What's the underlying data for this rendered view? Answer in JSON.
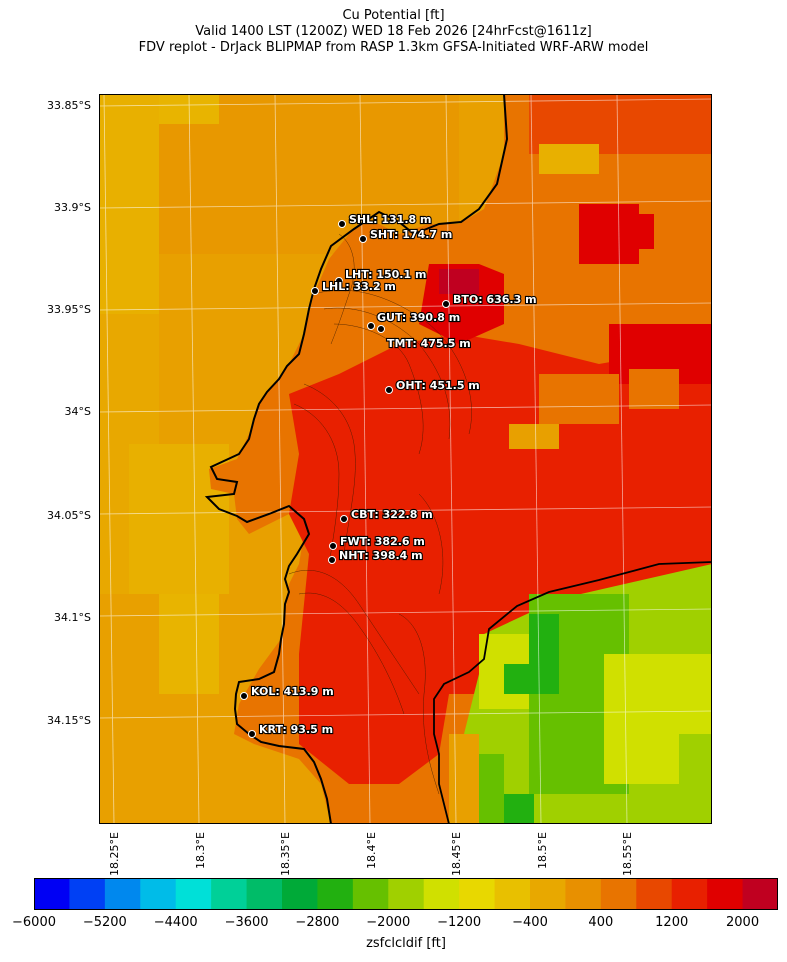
{
  "title": {
    "line1": "Cu Potential [ft]",
    "line2": "Valid 1400 LST (1200Z) WED 18 Feb 2026 [24hrFcst@1611z]",
    "line3": "FDV replot - DrJack BLIPMAP from RASP 1.3km GFSA-Initiated WRF-ARW model"
  },
  "y_ticks": [
    "33.85°S",
    "33.9°S",
    "33.95°S",
    "34°S",
    "34.05°S",
    "34.1°S",
    "34.15°S"
  ],
  "x_ticks": [
    "18.25°E",
    "18.3°E",
    "18.35°E",
    "18.4°E",
    "18.45°E",
    "18.5°E",
    "18.55°E"
  ],
  "stations": [
    {
      "id": "SHL",
      "label": "SHL: 131.8 m"
    },
    {
      "id": "SHT",
      "label": "SHT: 174.7 m"
    },
    {
      "id": "LHT",
      "label": "LHT: 150.1 m"
    },
    {
      "id": "LHL",
      "label": "LHL: 33.2 m"
    },
    {
      "id": "BTO",
      "label": "BTO: 636.3 m"
    },
    {
      "id": "GUT",
      "label": "GUT: 390.8 m"
    },
    {
      "id": "TMT",
      "label": "TMT: 475.5 m"
    },
    {
      "id": "OHT",
      "label": "OHT: 451.5 m"
    },
    {
      "id": "CBT",
      "label": "CBT: 322.8 m"
    },
    {
      "id": "FWT",
      "label": "FWT: 382.6 m"
    },
    {
      "id": "NHT",
      "label": "NHT: 398.4 m"
    },
    {
      "id": "KOL",
      "label": "KOL: 413.9 m"
    },
    {
      "id": "KRT",
      "label": "KRT: 93.5 m"
    }
  ],
  "colorbar": {
    "label": "zsfclcldif [ft]",
    "ticks": [
      "−6000",
      "−5200",
      "−4400",
      "−3600",
      "−2800",
      "−2000",
      "−1200",
      "−400",
      "400",
      "1200",
      "2000"
    ],
    "colors": [
      "#0000f4",
      "#0040f4",
      "#0088ee",
      "#00bce8",
      "#00e0d8",
      "#00d098",
      "#00bc68",
      "#00aa38",
      "#22b010",
      "#66c000",
      "#a0d000",
      "#d0e000",
      "#e8d800",
      "#e8c000",
      "#e8a800",
      "#e89000",
      "#e87400",
      "#e84800",
      "#e82000",
      "#e00000",
      "#c00020"
    ]
  }
}
